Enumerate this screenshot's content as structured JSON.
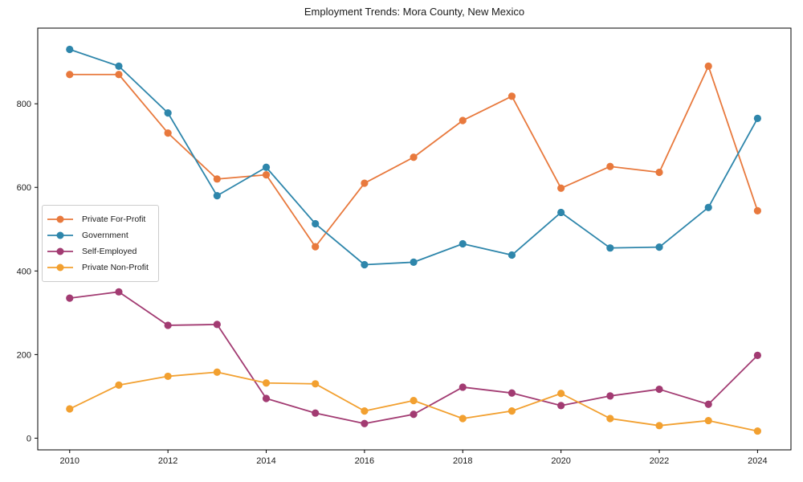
{
  "figure": {
    "background": "#ffffff",
    "text_color": "#1a1a1a",
    "spine_color": "#000000"
  },
  "chart_data": {
    "type": "line",
    "title": "Employment Trends: Mora County, New Mexico",
    "xlabel": "",
    "ylabel": "",
    "grid": false,
    "legend_position": "center-left",
    "x": [
      2010,
      2011,
      2012,
      2013,
      2014,
      2015,
      2016,
      2017,
      2018,
      2019,
      2020,
      2021,
      2022,
      2023,
      2024
    ],
    "x_ticks": [
      2010,
      2012,
      2014,
      2016,
      2018,
      2020,
      2022,
      2024
    ],
    "y_ticks": [
      0,
      200,
      400,
      600,
      800
    ],
    "xlim": [
      2009.35,
      2024.68
    ],
    "ylim": [
      -28,
      981
    ],
    "series": [
      {
        "name": "Private For-Profit",
        "color": "#E8793D",
        "values": [
          870,
          870,
          730,
          620,
          630,
          458,
          610,
          672,
          760,
          818,
          598,
          650,
          636,
          890,
          544
        ]
      },
      {
        "name": "Government",
        "color": "#2E86AB",
        "values": [
          930,
          890,
          778,
          580,
          648,
          513,
          415,
          421,
          465,
          438,
          540,
          455,
          457,
          552,
          765
        ]
      },
      {
        "name": "Self-Employed",
        "color": "#A23B72",
        "values": [
          335,
          350,
          270,
          272,
          95,
          60,
          35,
          57,
          122,
          108,
          78,
          101,
          117,
          81,
          198
        ]
      },
      {
        "name": "Private Non-Profit",
        "color": "#F2A030",
        "values": [
          70,
          127,
          148,
          158,
          132,
          130,
          65,
          90,
          47,
          65,
          107,
          47,
          30,
          42,
          17
        ]
      }
    ]
  }
}
